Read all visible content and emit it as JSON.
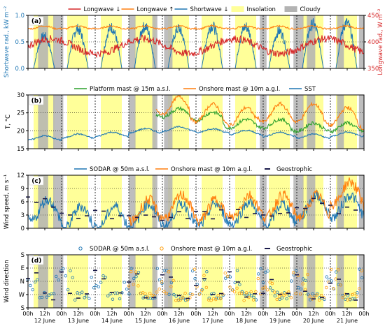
{
  "chart_data": [
    {
      "type": "line",
      "panel_label": "(a)",
      "ylabel_left": "Shortwave rad., kW m⁻²",
      "ylabel_right": "Longwave rad., W m⁻²",
      "ylim_left": [
        0,
        1.0
      ],
      "ylim_right": [
        350,
        450
      ],
      "yticks_left": [
        "0.0",
        "0.5",
        "1.0"
      ],
      "yticks_right": [
        "350",
        "400",
        "450"
      ],
      "legend": [
        "Longwave ↓",
        "Longwave ↑",
        "Shortwave ↓",
        "Insolation",
        "Cloudy"
      ],
      "legend_position": "top-center",
      "series": [
        {
          "name": "Longwave ↓",
          "axis": "right",
          "color": "#d62728",
          "baseline": 392,
          "amplitude": 14
        },
        {
          "name": "Longwave ↑",
          "axis": "right",
          "color": "#ff7f0e",
          "baseline": 425,
          "amplitude": 5
        },
        {
          "name": "Shortwave ↓",
          "axis": "left",
          "color": "#1f77b4",
          "peaks": [
            0.7,
            0.85,
            0.88,
            0.9,
            0.85,
            0.92,
            0.9,
            0.8,
            0.95,
            0.98
          ]
        }
      ]
    },
    {
      "type": "line",
      "panel_label": "(b)",
      "ylabel": "T, °C",
      "ylim": [
        15,
        30
      ],
      "yticks": [
        "15",
        "20",
        "25",
        "30"
      ],
      "legend": [
        "Platform mast @ 15m a.s.l.",
        "Onshore mast @ 10m a.g.l.",
        "SST"
      ],
      "legend_position": "top-center",
      "series": [
        {
          "name": "Platform mast @ 15m a.s.l.",
          "color": "#2ca02c",
          "start_day": 3.8,
          "daily": [
            25,
            24,
            22,
            22,
            21,
            21,
            21,
            22,
            22
          ]
        },
        {
          "name": "Onshore mast @ 10m a.g.l.",
          "color": "#ff7f0e",
          "start_day": 3.8,
          "daily": [
            27,
            25,
            24,
            25,
            25,
            24,
            23,
            25,
            24
          ]
        },
        {
          "name": "SST",
          "color": "#1f77b4",
          "start_day": 0,
          "daily": [
            18,
            18.5,
            19,
            20,
            20.5,
            20,
            19.5,
            19,
            18.5,
            19
          ]
        }
      ]
    },
    {
      "type": "line",
      "panel_label": "(c)",
      "ylabel": "Wind speed, m s⁻¹",
      "ylim": [
        0,
        12
      ],
      "yticks": [
        "0",
        "3",
        "6",
        "9",
        "12"
      ],
      "legend": [
        "SODAR @ 50m a.s.l.",
        "Onshore mast @ 10m a.g.l.",
        "Geostrophic"
      ],
      "legend_position": "top-center",
      "series": [
        {
          "name": "SODAR @ 50m a.s.l.",
          "color": "#1f77b4",
          "daily": [
            4,
            2.5,
            2.5,
            3,
            3,
            3,
            3.5,
            3,
            5,
            5
          ]
        },
        {
          "name": "Onshore mast @ 10m a.g.l.",
          "color": "#ff7f0e",
          "start_day": 3.0,
          "daily": [
            4,
            5,
            4,
            5,
            5,
            5,
            8,
            6
          ]
        },
        {
          "name": "Geostrophic",
          "color": "#1a1a4a",
          "daily": [
            6,
            3,
            3,
            3,
            2.5,
            3,
            3,
            3.5,
            5.5,
            4
          ]
        }
      ]
    },
    {
      "type": "scatter",
      "panel_label": "(d)",
      "ylabel": "Wind direction",
      "yticks": [
        "S",
        "W",
        "N",
        "E",
        "S"
      ],
      "yrange_deg": [
        0,
        360
      ],
      "legend": [
        "SODAR @ 50m a.s.l.",
        "Onshore mast @ 10m a.g.l.",
        "Geostrophic"
      ],
      "legend_position": "top-center",
      "series": [
        {
          "name": "SODAR @ 50m a.s.l.",
          "color": "#1f77b4",
          "marker": "open-circle"
        },
        {
          "name": "Onshore mast @ 10m a.g.l.",
          "color": "#ff9f0e",
          "marker": "open-circle",
          "start_day": 3.0
        },
        {
          "name": "Geostrophic",
          "color": "#1a1a4a",
          "marker": "dash"
        }
      ]
    }
  ],
  "x_axis": {
    "range_days": [
      0,
      10
    ],
    "major_labels": [
      "00h",
      "12h",
      "00h",
      "12h",
      "00h",
      "12h",
      "00h",
      "12h",
      "00h",
      "12h",
      "00h",
      "12h",
      "00h",
      "12h",
      "00h",
      "12h",
      "00h",
      "12h",
      "00h",
      "12h",
      "00h"
    ],
    "day_labels": [
      "12 June",
      "13 June",
      "14 June",
      "15 June",
      "16 June",
      "17 June",
      "18 June",
      "19 June",
      "20 June",
      "21 June"
    ]
  },
  "insolation_hours": [
    4,
    19
  ],
  "cloudy_periods": [
    [
      0.3,
      0.6
    ],
    [
      0.75,
      1.05
    ],
    [
      3.0,
      3.2
    ],
    [
      3.7,
      3.85
    ],
    [
      4.05,
      4.3
    ],
    [
      6.9,
      7.1
    ],
    [
      7.9,
      8.2
    ],
    [
      8.3,
      8.55
    ],
    [
      9.2,
      9.4
    ],
    [
      9.85,
      10.0
    ]
  ],
  "colors": {
    "insolation": "#ffff99",
    "cloudy": "#b3b3b3"
  }
}
